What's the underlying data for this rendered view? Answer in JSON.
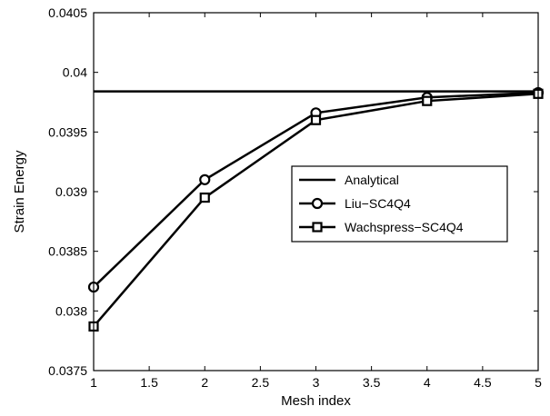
{
  "chart_data": {
    "type": "line",
    "xlabel": "Mesh index",
    "ylabel": "Strain Energy",
    "xlim": [
      1,
      5
    ],
    "ylim": [
      0.0375,
      0.0405
    ],
    "x_ticks": [
      "1",
      "1.5",
      "2",
      "2.5",
      "3",
      "3.5",
      "4",
      "4.5",
      "5"
    ],
    "y_ticks": [
      "0.0375",
      "0.038",
      "0.0385",
      "0.039",
      "0.0395",
      "0.04",
      "0.0405"
    ],
    "grid": false,
    "legend_position": "center-right",
    "series": [
      {
        "name": "Analytical",
        "marker": "none",
        "x": [
          1,
          5
        ],
        "y": [
          0.03984,
          0.03984
        ]
      },
      {
        "name": "Liu−SC4Q4",
        "marker": "circle",
        "x": [
          1,
          2,
          3,
          4,
          5
        ],
        "y": [
          0.0382,
          0.0391,
          0.03966,
          0.03979,
          0.03983
        ]
      },
      {
        "name": "Wachspress−SC4Q4",
        "marker": "square",
        "x": [
          1,
          2,
          3,
          4,
          5
        ],
        "y": [
          0.03787,
          0.03895,
          0.0396,
          0.03976,
          0.03982
        ]
      }
    ]
  }
}
